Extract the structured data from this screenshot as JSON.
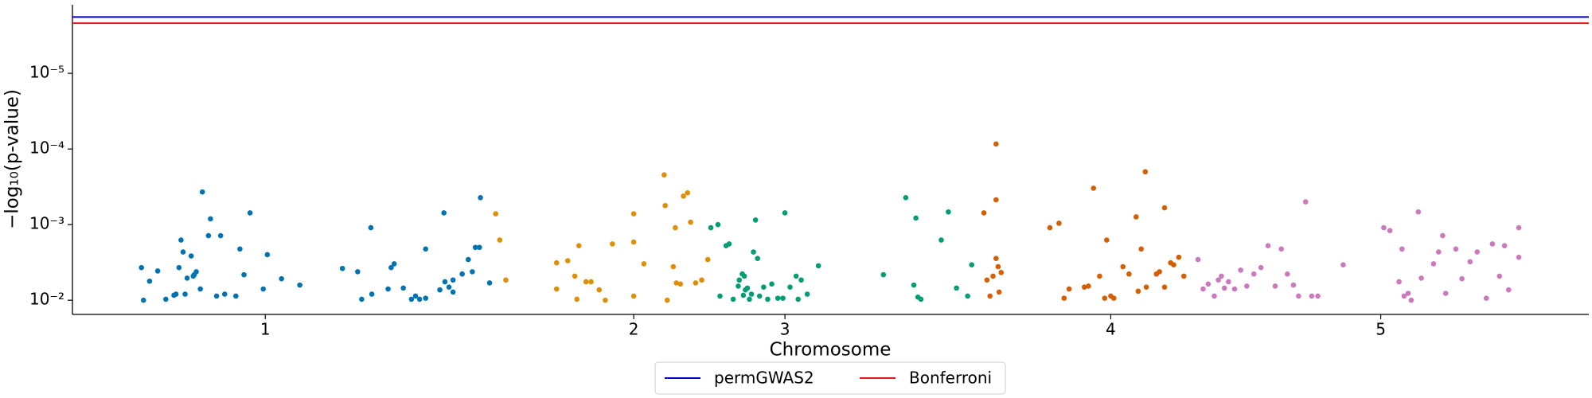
{
  "chart_data": {
    "type": "scatter",
    "xlabel": "Chromosome",
    "ylabel": "−log₁₀(p-value)",
    "yscale": "log",
    "ylim": [
      0.0154,
      1.24e-06
    ],
    "yticks": [
      {
        "value": 0.01,
        "label": "10⁻²"
      },
      {
        "value": 0.001,
        "label": "10⁻³"
      },
      {
        "value": 0.0001,
        "label": "10⁻⁴"
      },
      {
        "value": 1e-05,
        "label": "10⁻⁵"
      }
    ],
    "xlim": [
      71,
      1565
    ],
    "xticks": [
      {
        "value": 261,
        "label": "1"
      },
      {
        "value": 624,
        "label": "2"
      },
      {
        "value": 773,
        "label": "3"
      },
      {
        "value": 1094,
        "label": "4"
      },
      {
        "value": 1360,
        "label": "5"
      }
    ],
    "legend": "bottom-outside",
    "groups": [
      {
        "color": "#0173b2",
        "x": [
          139,
          141,
          147,
          155,
          163,
          171,
          173,
          176,
          178,
          180,
          182,
          184,
          188,
          190,
          191,
          193,
          197,
          199,
          205,
          207,
          213,
          217,
          221,
          232,
          236,
          240,
          246,
          259,
          263,
          277,
          295,
          337,
          352,
          356,
          365,
          366,
          382,
          385,
          388,
          397,
          405,
          409,
          413,
          419,
          419,
          433,
          437,
          438,
          442,
          446,
          446,
          455,
          461,
          465,
          468,
          472,
          473,
          482
        ],
        "y": [
          0.0037,
          0.01,
          0.0056,
          0.0041,
          0.0097,
          0.0086,
          0.0083,
          0.0037,
          0.0016,
          0.0023,
          0.0083,
          0.0051,
          0.0026,
          0.0048,
          0.0046,
          0.0042,
          0.0071,
          0.00037,
          0.0014,
          0.00084,
          0.0088,
          0.0014,
          0.0083,
          0.0088,
          0.0021,
          0.0046,
          0.0007,
          0.0071,
          0.0025,
          0.0052,
          0.0063,
          0.0038,
          0.0042,
          0.0097,
          0.0011,
          0.0083,
          0.0071,
          0.0037,
          0.0033,
          0.0069,
          0.0097,
          0.0088,
          0.0097,
          0.0094,
          0.0021,
          0.0073,
          0.0007,
          0.0057,
          0.0067,
          0.0078,
          0.0054,
          0.0045,
          0.0029,
          0.0042,
          0.002,
          0.002,
          0.00044,
          0.0059
        ]
      },
      {
        "color": "#de8f05",
        "x": [
          488,
          492,
          498,
          548,
          548,
          559,
          566,
          568,
          570,
          577,
          582,
          590,
          596,
          603,
          624,
          624,
          624,
          634,
          654,
          655,
          657,
          663,
          665,
          666,
          670,
          673,
          677,
          680,
          685,
          691,
          697
        ],
        "y": [
          0.00072,
          0.0016,
          0.0054,
          0.0032,
          0.0071,
          0.003,
          0.0048,
          0.0097,
          0.0019,
          0.0057,
          0.0057,
          0.0073,
          0.01,
          0.0018,
          0.0088,
          0.00072,
          0.0017,
          0.0033,
          0.00022,
          0.00056,
          0.01,
          0.0036,
          0.0011,
          0.0059,
          0.0061,
          0.00042,
          0.00038,
          0.00093,
          0.0059,
          0.0054,
          0.0029
        ]
      },
      {
        "color": "#029e73",
        "x": [
          700,
          707,
          709,
          715,
          718,
          722,
          727,
          728,
          731,
          732,
          733,
          734,
          736,
          738,
          740,
          742,
          744,
          746,
          748,
          752,
          756,
          760,
          766,
          771,
          773,
          778,
          784,
          786,
          789,
          795,
          806,
          870,
          892,
          900,
          902,
          904,
          907,
          927,
          934,
          942,
          953,
          957
        ],
        "y": [
          0.0011,
          0.001,
          0.0088,
          0.0019,
          0.0018,
          0.0097,
          0.0065,
          0.0054,
          0.0045,
          0.0086,
          0.0048,
          0.0073,
          0.0069,
          0.0097,
          0.0083,
          0.0023,
          0.00087,
          0.0028,
          0.0088,
          0.0067,
          0.0097,
          0.0061,
          0.0094,
          0.0094,
          0.0007,
          0.0067,
          0.0048,
          0.0097,
          0.0054,
          0.0083,
          0.0035,
          0.0046,
          0.00044,
          0.0063,
          0.00082,
          0.0091,
          0.0097,
          0.0016,
          0.00068,
          0.0069,
          0.0088,
          0.0034
        ]
      },
      {
        "color": "#d55e00",
        "x": [
          969,
          972,
          975,
          978,
          981,
          981,
          983,
          984,
          986,
          981,
          1034,
          1043,
          1048,
          1053,
          1068,
          1072,
          1077,
          1083,
          1088,
          1090,
          1094,
          1097,
          1106,
          1112,
          1119,
          1121,
          1124,
          1128,
          1129,
          1139,
          1142,
          1147,
          1147,
          1153,
          1156,
          1161,
          1166
        ],
        "y": [
          0.0007,
          0.0054,
          0.0088,
          0.0048,
          0.00047,
          8.6e-05,
          0.0036,
          0.0078,
          0.0043,
          0.0028,
          0.0011,
          0.00096,
          0.0094,
          0.0071,
          0.0067,
          0.0065,
          0.00033,
          0.0048,
          0.0094,
          0.0016,
          0.0088,
          0.0094,
          0.0036,
          0.0045,
          0.00079,
          0.0076,
          0.0021,
          0.0002,
          0.0067,
          0.0045,
          0.0042,
          0.0006,
          0.0067,
          0.0032,
          0.0034,
          0.0027,
          0.0048
        ]
      },
      {
        "color": "#cc78bc",
        "x": [
          1180,
          1185,
          1190,
          1196,
          1200,
          1203,
          1206,
          1210,
          1216,
          1222,
          1228,
          1235,
          1242,
          1249,
          1256,
          1262,
          1268,
          1274,
          1279,
          1286,
          1292,
          1298,
          1323,
          1363,
          1369,
          1378,
          1381,
          1383,
          1387,
          1390,
          1397,
          1400,
          1412,
          1417,
          1421,
          1424,
          1434,
          1440,
          1448,
          1455,
          1464,
          1470,
          1477,
          1482,
          1486,
          1496,
          1496
        ],
        "y": [
          0.0029,
          0.0071,
          0.0061,
          0.0088,
          0.0054,
          0.0048,
          0.0069,
          0.0057,
          0.0071,
          0.004,
          0.0065,
          0.0045,
          0.0037,
          0.0019,
          0.0065,
          0.0021,
          0.0045,
          0.0063,
          0.0088,
          0.0005,
          0.0088,
          0.0088,
          0.0034,
          0.0011,
          0.0012,
          0.0057,
          0.0021,
          0.0088,
          0.0081,
          0.01,
          0.00068,
          0.0051,
          0.0033,
          0.0023,
          0.0014,
          0.0081,
          0.0021,
          0.0052,
          0.0031,
          0.0023,
          0.0094,
          0.0018,
          0.0048,
          0.0019,
          0.0073,
          0.0011,
          0.0027
        ]
      }
    ],
    "hlines": [
      {
        "name": "permGWAS2",
        "color": "#0000cc",
        "value": 1.8e-06
      },
      {
        "name": "Bonferroni",
        "color": "#e8161a",
        "value": 2.17e-06
      }
    ]
  }
}
